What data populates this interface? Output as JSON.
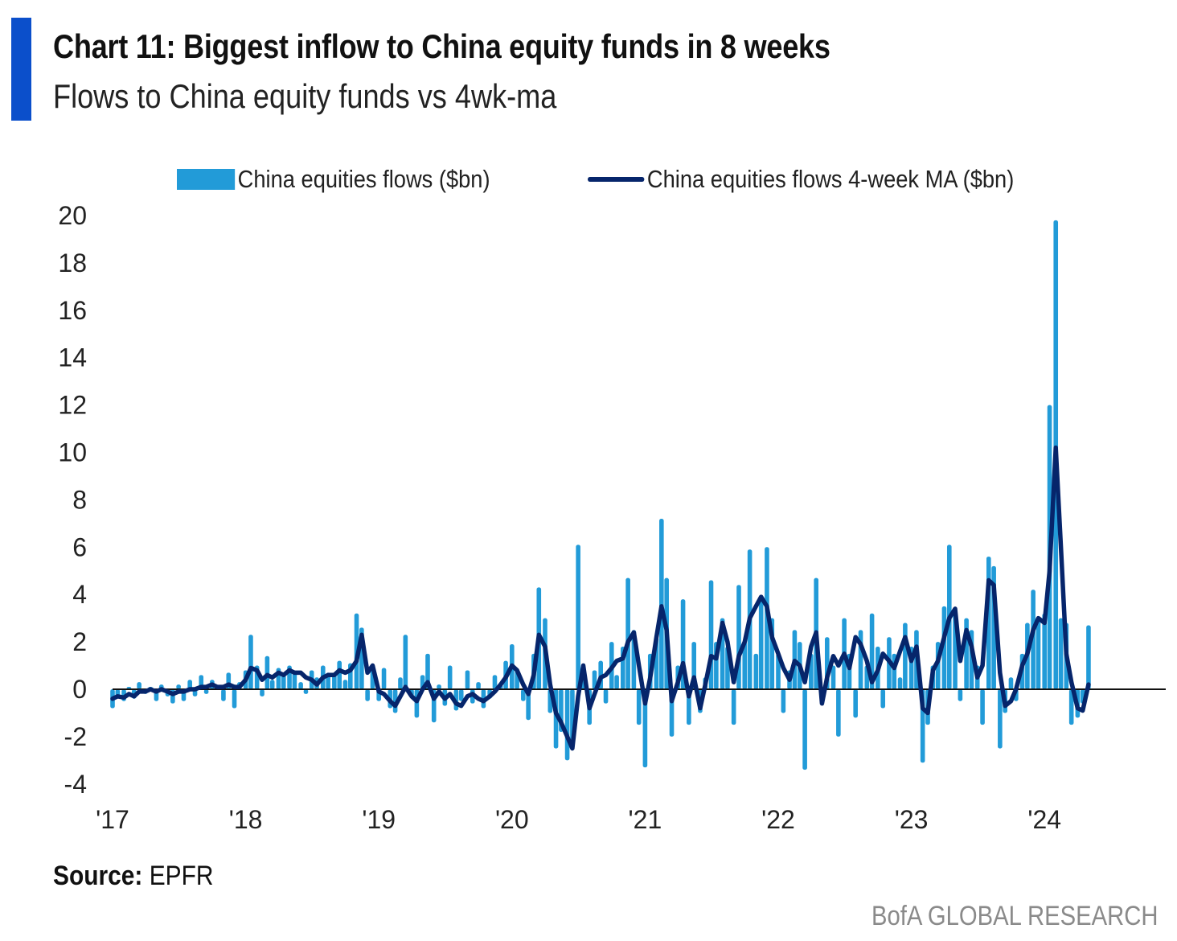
{
  "header": {
    "title": "Chart 11: Biggest inflow to China equity funds in 8 weeks",
    "subtitle": "Flows to China equity funds vs 4wk-ma"
  },
  "footer": {
    "source_label": "Source:",
    "source_value": " EPFR",
    "brand": "BofA GLOBAL RESEARCH"
  },
  "colors": {
    "accent": "#0b4fcb",
    "bars": "#229bd8",
    "line": "#06256b",
    "zero_line": "#111111"
  },
  "chart_data": {
    "type": "bar+line",
    "title": "Chart 11: Biggest inflow to China equity funds in 8 weeks",
    "subtitle": "Flows to China equity funds vs 4wk-ma",
    "xlabel": "",
    "ylabel": "",
    "ylim": [
      -4,
      20
    ],
    "yticks": [
      20,
      18,
      16,
      14,
      12,
      10,
      8,
      6,
      4,
      2,
      0,
      -2,
      -4
    ],
    "xticks": [
      {
        "label": "'17",
        "date": "2017-01-01"
      },
      {
        "label": "'18",
        "date": "2018-01-01"
      },
      {
        "label": "'19",
        "date": "2019-01-01"
      },
      {
        "label": "'20",
        "date": "2020-01-01"
      },
      {
        "label": "'21",
        "date": "2021-01-01"
      },
      {
        "label": "'22",
        "date": "2022-01-01"
      },
      {
        "label": "'23",
        "date": "2023-01-01"
      },
      {
        "label": "'24",
        "date": "2024-01-01"
      }
    ],
    "xlim": [
      "2017-01-01",
      "2024-12-31"
    ],
    "grid": false,
    "legend_position": "top",
    "x": [
      "2017-01-01",
      "2017-01-15",
      "2017-02-01",
      "2017-02-15",
      "2017-03-01",
      "2017-03-15",
      "2017-04-01",
      "2017-04-15",
      "2017-05-01",
      "2017-05-15",
      "2017-06-01",
      "2017-06-15",
      "2017-07-01",
      "2017-07-15",
      "2017-08-01",
      "2017-08-15",
      "2017-09-01",
      "2017-09-15",
      "2017-10-01",
      "2017-10-15",
      "2017-11-01",
      "2017-11-15",
      "2017-12-01",
      "2017-12-15",
      "2018-01-01",
      "2018-01-15",
      "2018-02-01",
      "2018-02-15",
      "2018-03-01",
      "2018-03-15",
      "2018-04-01",
      "2018-04-15",
      "2018-05-01",
      "2018-05-15",
      "2018-06-01",
      "2018-06-15",
      "2018-07-01",
      "2018-07-15",
      "2018-08-01",
      "2018-08-15",
      "2018-09-01",
      "2018-09-15",
      "2018-10-01",
      "2018-10-15",
      "2018-11-01",
      "2018-11-15",
      "2018-12-01",
      "2018-12-15",
      "2019-01-01",
      "2019-01-15",
      "2019-02-01",
      "2019-02-15",
      "2019-03-01",
      "2019-03-15",
      "2019-04-01",
      "2019-04-15",
      "2019-05-01",
      "2019-05-15",
      "2019-06-01",
      "2019-06-15",
      "2019-07-01",
      "2019-07-15",
      "2019-08-01",
      "2019-08-15",
      "2019-09-01",
      "2019-09-15",
      "2019-10-01",
      "2019-10-15",
      "2019-11-01",
      "2019-11-15",
      "2019-12-01",
      "2019-12-15",
      "2020-01-01",
      "2020-01-15",
      "2020-02-01",
      "2020-02-15",
      "2020-03-01",
      "2020-03-15",
      "2020-04-01",
      "2020-04-15",
      "2020-05-01",
      "2020-05-15",
      "2020-06-01",
      "2020-06-15",
      "2020-07-01",
      "2020-07-15",
      "2020-08-01",
      "2020-08-15",
      "2020-09-01",
      "2020-09-15",
      "2020-10-01",
      "2020-10-15",
      "2020-11-01",
      "2020-11-15",
      "2020-12-01",
      "2020-12-15",
      "2021-01-01",
      "2021-01-15",
      "2021-02-01",
      "2021-02-15",
      "2021-03-01",
      "2021-03-15",
      "2021-04-01",
      "2021-04-15",
      "2021-05-01",
      "2021-05-15",
      "2021-06-01",
      "2021-06-15",
      "2021-07-01",
      "2021-07-15",
      "2021-08-01",
      "2021-08-15",
      "2021-09-01",
      "2021-09-15",
      "2021-10-01",
      "2021-10-15",
      "2021-11-01",
      "2021-11-15",
      "2021-12-01",
      "2021-12-15",
      "2022-01-01",
      "2022-01-15",
      "2022-02-01",
      "2022-02-15",
      "2022-03-01",
      "2022-03-15",
      "2022-04-01",
      "2022-04-15",
      "2022-05-01",
      "2022-05-15",
      "2022-06-01",
      "2022-06-15",
      "2022-07-01",
      "2022-07-15",
      "2022-08-01",
      "2022-08-15",
      "2022-09-01",
      "2022-09-15",
      "2022-10-01",
      "2022-10-15",
      "2022-11-01",
      "2022-11-15",
      "2022-12-01",
      "2022-12-15",
      "2023-01-01",
      "2023-01-15",
      "2023-02-01",
      "2023-02-15",
      "2023-03-01",
      "2023-03-15",
      "2023-04-01",
      "2023-04-15",
      "2023-05-01",
      "2023-05-15",
      "2023-06-01",
      "2023-06-15",
      "2023-07-01",
      "2023-07-15",
      "2023-08-01",
      "2023-08-15",
      "2023-09-01",
      "2023-09-15",
      "2023-10-01",
      "2023-10-15",
      "2023-11-01",
      "2023-11-15",
      "2023-12-01",
      "2023-12-15",
      "2024-01-01",
      "2024-01-15",
      "2024-02-01",
      "2024-02-15",
      "2024-03-01",
      "2024-03-15",
      "2024-04-01",
      "2024-04-15",
      "2024-05-01"
    ],
    "series": [
      {
        "name": "China equities flows ($bn)",
        "type": "bar",
        "values": [
          -0.8,
          -0.3,
          -0.5,
          0.1,
          -0.4,
          0.3,
          -0.2,
          0.1,
          -0.5,
          0.2,
          -0.3,
          -0.6,
          0.2,
          -0.5,
          0.4,
          -0.3,
          0.6,
          -0.2,
          0.4,
          0.1,
          -0.5,
          0.7,
          -0.8,
          0.3,
          0.8,
          2.3,
          1.0,
          -0.3,
          1.4,
          0.4,
          0.9,
          0.6,
          1.0,
          0.7,
          0.3,
          -0.2,
          0.8,
          0.5,
          1.0,
          0.7,
          0.6,
          1.2,
          0.4,
          1.1,
          3.2,
          2.6,
          -0.5,
          0.8,
          -0.5,
          0.9,
          -0.8,
          -1.0,
          0.5,
          2.3,
          -0.3,
          -1.2,
          0.6,
          1.5,
          -1.4,
          0.2,
          -0.7,
          1.0,
          -0.9,
          -0.5,
          0.8,
          -0.6,
          0.3,
          -0.8,
          -0.4,
          0.6,
          0.2,
          1.2,
          1.9,
          0.8,
          -0.5,
          -1.3,
          1.5,
          4.3,
          3.0,
          -1.0,
          -2.5,
          -1.8,
          -3.0,
          -2.2,
          6.1,
          0.5,
          -1.5,
          0.8,
          1.2,
          -0.6,
          2.0,
          0.6,
          1.8,
          4.7,
          2.5,
          -1.5,
          -3.3,
          1.5,
          2.2,
          7.2,
          4.7,
          -2.0,
          1.0,
          3.8,
          -1.5,
          2.0,
          -1.0,
          0.5,
          4.6,
          2.0,
          3.0,
          1.8,
          -1.5,
          4.4,
          2.0,
          5.9,
          1.5,
          3.8,
          6.0,
          3.0,
          1.5,
          -1.0,
          0.8,
          2.5,
          2.0,
          -3.4,
          1.5,
          4.7,
          -0.5,
          2.2,
          1.0,
          -2.0,
          3.0,
          1.5,
          -1.2,
          2.5,
          1.0,
          3.2,
          1.8,
          -0.8,
          2.2,
          1.5,
          0.5,
          2.8,
          1.8,
          2.5,
          -3.1,
          -1.5,
          1.0,
          2.0,
          3.5,
          6.1,
          3.2,
          -0.5,
          3.0,
          2.5,
          1.0,
          -1.5,
          5.6,
          5.2,
          -2.5,
          -1.0,
          0.5,
          -0.5,
          1.5,
          2.8,
          4.2,
          3.0,
          3.2,
          12.0,
          19.8,
          3.0,
          2.8,
          -1.5,
          -1.2,
          -0.6,
          2.7
        ]
      },
      {
        "name": "China equities flows 4-week MA ($bn)",
        "type": "line",
        "values": [
          -0.4,
          -0.3,
          -0.35,
          -0.2,
          -0.3,
          -0.1,
          -0.1,
          0,
          -0.1,
          0,
          -0.1,
          -0.2,
          -0.1,
          -0.1,
          0,
          0,
          0.1,
          0.1,
          0.2,
          0.1,
          0.1,
          0.2,
          0.1,
          0.1,
          0.4,
          0.9,
          0.8,
          0.4,
          0.6,
          0.5,
          0.7,
          0.6,
          0.8,
          0.7,
          0.7,
          0.5,
          0.4,
          0.2,
          0.5,
          0.6,
          0.6,
          0.8,
          0.7,
          0.8,
          1.2,
          2.3,
          0.7,
          1.0,
          -0.1,
          -0.2,
          -0.5,
          -0.7,
          -0.3,
          0.1,
          -0.3,
          -0.5,
          0,
          0.3,
          -0.4,
          -0.1,
          -0.4,
          -0.2,
          -0.6,
          -0.7,
          -0.3,
          -0.2,
          -0.4,
          -0.5,
          -0.3,
          -0.1,
          0.2,
          0.5,
          1.0,
          0.8,
          0.2,
          -0.2,
          0.6,
          2.3,
          1.8,
          0.2,
          -1.0,
          -1.4,
          -2.0,
          -2.5,
          -0.3,
          1.0,
          -0.8,
          -0.2,
          0.5,
          0.6,
          0.9,
          1.2,
          1.3,
          2.0,
          2.4,
          1.0,
          -0.6,
          0.5,
          2.2,
          3.5,
          2.5,
          -0.5,
          0.3,
          1.1,
          -0.3,
          0.5,
          -0.8,
          0.2,
          1.4,
          1.3,
          2.8,
          2.0,
          0.3,
          1.4,
          2.0,
          3.0,
          3.5,
          3.9,
          3.5,
          2.2,
          1.5,
          0.9,
          0.4,
          1.2,
          1.0,
          0.3,
          1.8,
          2.4,
          -0.6,
          0.5,
          1.4,
          1.0,
          1.5,
          0.9,
          2.2,
          1.9,
          1.2,
          0.3,
          0.8,
          1.5,
          1.2,
          0.9,
          1.6,
          2.2,
          1.2,
          1.8,
          -0.8,
          -1.0,
          0.8,
          1.2,
          2.2,
          3.0,
          3.4,
          1.2,
          2.5,
          1.8,
          0.5,
          1.0,
          4.6,
          4.4,
          0.7,
          -0.7,
          -0.5,
          0.0,
          1.0,
          1.5,
          2.5,
          3.0,
          2.8,
          5.0,
          10.2,
          6.0,
          1.5,
          0.3,
          -0.8,
          -0.9,
          0.2
        ]
      }
    ]
  }
}
